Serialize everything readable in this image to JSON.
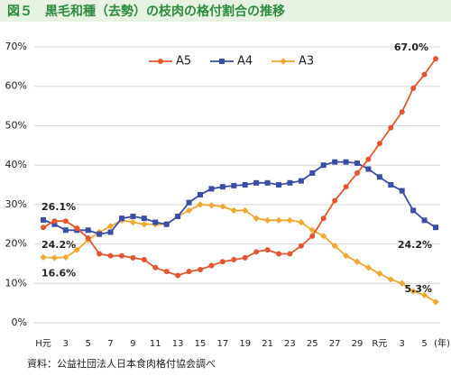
{
  "chart_data": {
    "type": "line",
    "title": "図５　黒毛和種（去勢）の枝肉の格付割合の推移",
    "source": "資料：公益社団法人日本食肉格付協会調べ",
    "x_label": "(年)",
    "categories": [
      "H元",
      null,
      "3",
      null,
      "5",
      null,
      "7",
      null,
      "9",
      null,
      "11",
      null,
      "13",
      null,
      "15",
      null,
      "17",
      null,
      "19",
      null,
      "21",
      null,
      "23",
      null,
      "25",
      null,
      "27",
      null,
      "29",
      null,
      "R元",
      null,
      "3",
      null,
      "5",
      null
    ],
    "series": [
      {
        "name": "A5",
        "color": "#e4572e",
        "marker": "circle",
        "values": [
          24.2,
          25.8,
          25.8,
          24,
          21.5,
          17.5,
          17,
          17,
          16.5,
          16,
          14,
          13,
          12,
          13,
          13.5,
          14.5,
          15.5,
          16,
          16.5,
          18,
          18.5,
          17.5,
          17.5,
          19.5,
          22,
          26.5,
          31,
          34.5,
          38,
          41.5,
          45.5,
          49.5,
          53.5,
          59.5,
          63,
          67.0
        ],
        "value_labels": [
          "24.2%",
          null,
          null,
          null,
          null,
          null,
          null,
          null,
          null,
          null,
          null,
          null,
          null,
          null,
          null,
          null,
          null,
          null,
          null,
          null,
          null,
          null,
          null,
          null,
          null,
          null,
          null,
          null,
          null,
          null,
          null,
          null,
          null,
          null,
          null,
          "67.0%"
        ]
      },
      {
        "name": "A4",
        "color": "#3a4ea3",
        "marker": "square",
        "values": [
          26.1,
          25,
          23.5,
          23.5,
          23.5,
          22.5,
          23,
          26.5,
          27,
          26.5,
          25.5,
          25,
          27,
          30.5,
          32.5,
          34,
          34.5,
          34.8,
          35,
          35.5,
          35.5,
          35,
          35.5,
          36,
          38,
          40,
          40.8,
          40.8,
          40.5,
          39,
          37,
          35,
          33.5,
          28.5,
          26,
          24.2
        ],
        "value_labels": [
          "26.1%",
          null,
          null,
          null,
          null,
          null,
          null,
          null,
          null,
          null,
          null,
          null,
          null,
          null,
          null,
          null,
          null,
          null,
          null,
          null,
          null,
          null,
          null,
          null,
          null,
          null,
          null,
          null,
          null,
          null,
          null,
          null,
          null,
          null,
          null,
          "24.2%"
        ]
      },
      {
        "name": "A3",
        "color": "#f0a830",
        "marker": "diamond",
        "values": [
          16.6,
          16.5,
          16.6,
          18.5,
          21,
          23,
          24.5,
          26,
          25.5,
          25,
          25,
          25,
          27,
          28.5,
          30,
          29.8,
          29.5,
          28.5,
          28.5,
          26.5,
          26,
          26,
          26,
          25.5,
          23.5,
          22,
          19.5,
          17,
          15.5,
          14,
          12.5,
          11,
          10,
          8,
          7,
          5.3
        ],
        "value_labels": [
          "16.6%",
          null,
          null,
          null,
          null,
          null,
          null,
          null,
          null,
          null,
          null,
          null,
          null,
          null,
          null,
          null,
          null,
          null,
          null,
          null,
          null,
          null,
          null,
          null,
          null,
          null,
          null,
          null,
          null,
          null,
          null,
          null,
          null,
          null,
          null,
          "5.3%"
        ]
      }
    ],
    "ylim": [
      0,
      70
    ],
    "yticks": [
      {
        "value": 0,
        "label": "0%"
      },
      {
        "value": 10,
        "label": "10%"
      },
      {
        "value": 20,
        "label": "20%"
      },
      {
        "value": 30,
        "label": "30%"
      },
      {
        "value": 40,
        "label": "40%"
      },
      {
        "value": 50,
        "label": "50%"
      },
      {
        "value": 60,
        "label": "60%"
      },
      {
        "value": 70,
        "label": "70%"
      }
    ],
    "grid": true,
    "legend": "top"
  }
}
